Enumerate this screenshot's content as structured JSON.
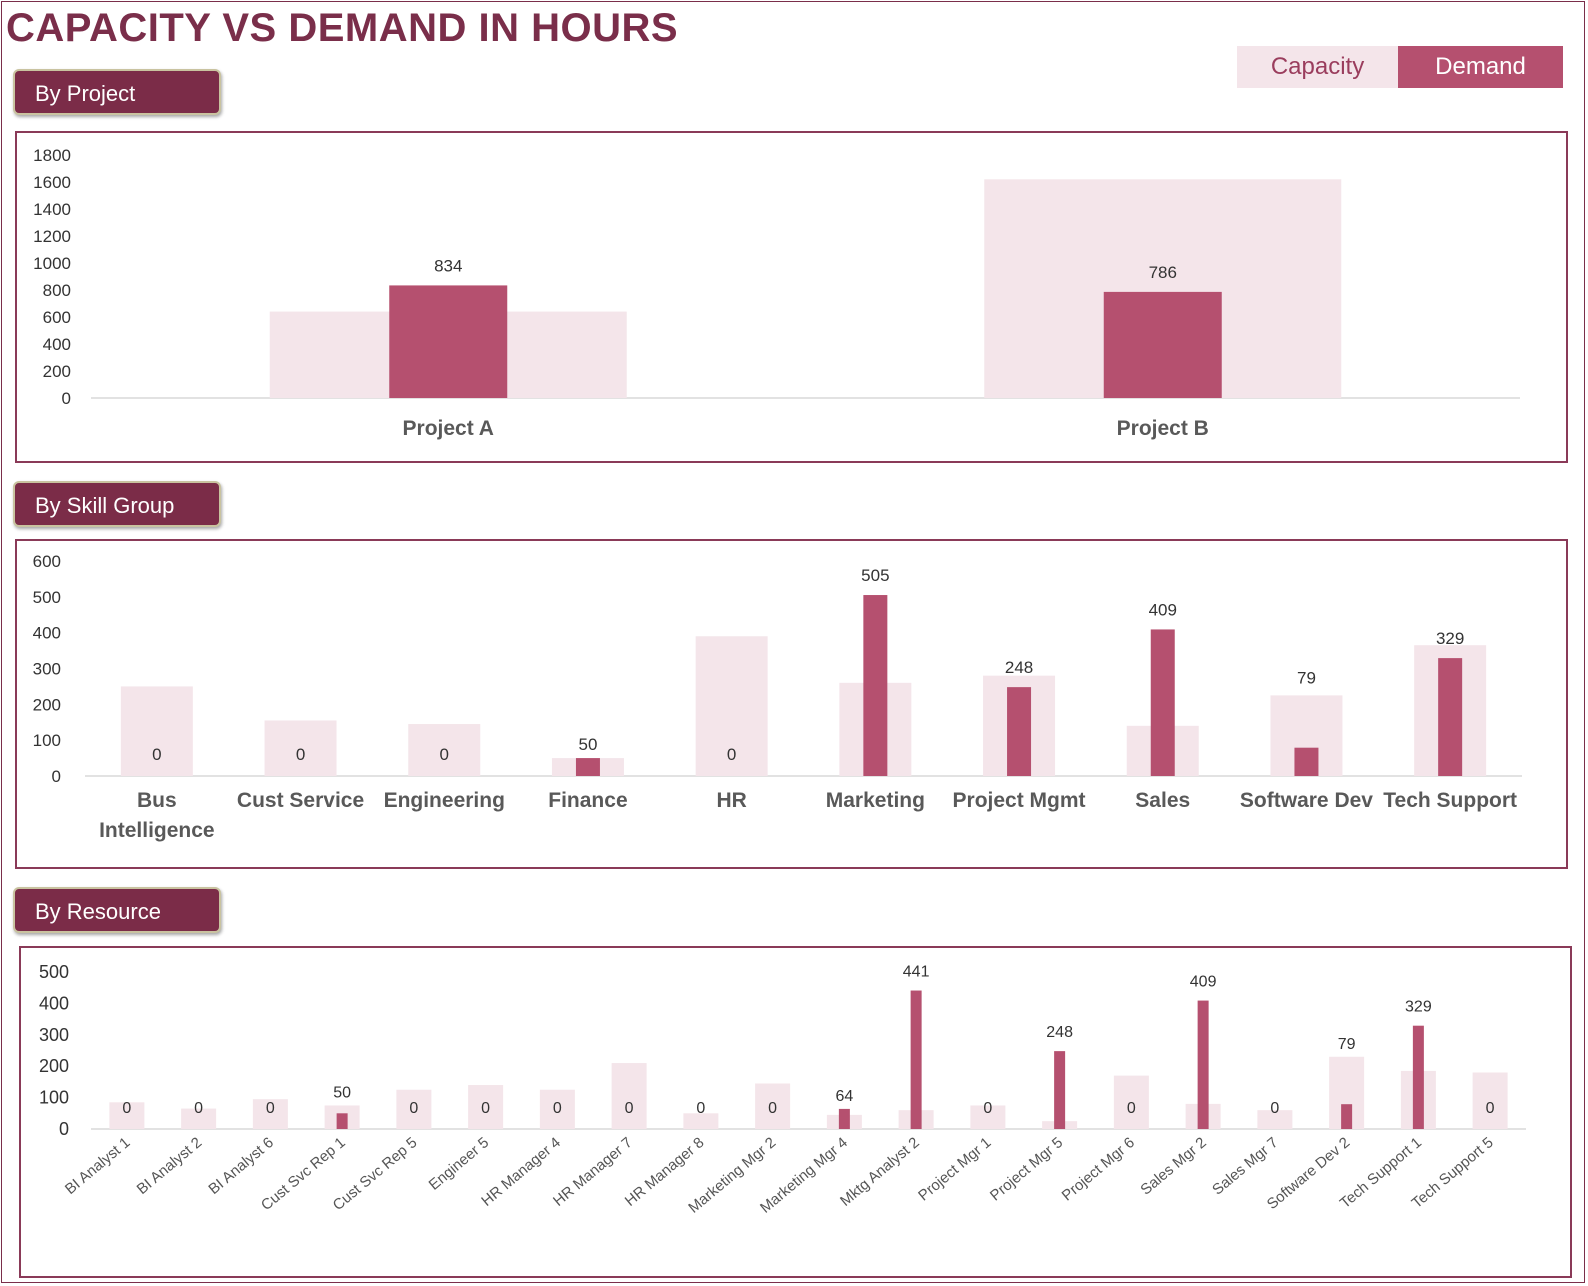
{
  "page": {
    "title": "CAPACITY VS DEMAND IN HOURS"
  },
  "legend": {
    "capacity_label": "Capacity",
    "demand_label": "Demand"
  },
  "colors": {
    "title": "#7a2e4a",
    "capacity": "#f4e5ea",
    "demand": "#b5506f",
    "tab_bg": "#7b2c48",
    "panel_border": "#8a3a58"
  },
  "sections": {
    "project_tab": "By Project",
    "skill_tab": "By Skill Group",
    "resource_tab": "By Resource"
  },
  "chart_data": [
    {
      "type": "bar",
      "title": "By Project",
      "categories": [
        "Project A",
        "Project B"
      ],
      "series": [
        {
          "name": "Capacity",
          "values": [
            640,
            1620
          ]
        },
        {
          "name": "Demand",
          "values": [
            834,
            786
          ]
        }
      ],
      "data_labels": [
        "834",
        "786"
      ],
      "yticks": [
        "0",
        "200",
        "400",
        "600",
        "800",
        "1000",
        "1200",
        "1400",
        "1600",
        "1800"
      ],
      "ylim": [
        0,
        1800
      ],
      "grid": false
    },
    {
      "type": "bar",
      "title": "By Skill Group",
      "categories": [
        [
          "Bus",
          "Intelligence"
        ],
        [
          "Cust Service"
        ],
        [
          "Engineering"
        ],
        [
          "Finance"
        ],
        [
          "HR"
        ],
        [
          "Marketing"
        ],
        [
          "Project Mgmt"
        ],
        [
          "Sales"
        ],
        [
          "Software Dev"
        ],
        [
          "Tech Support"
        ]
      ],
      "series": [
        {
          "name": "Capacity",
          "values": [
            250,
            155,
            145,
            50,
            390,
            260,
            280,
            140,
            225,
            365
          ]
        },
        {
          "name": "Demand",
          "values": [
            0,
            0,
            0,
            50,
            0,
            505,
            248,
            409,
            79,
            329
          ]
        }
      ],
      "data_labels": [
        "0",
        "0",
        "0",
        "50",
        "0",
        "505",
        "248",
        "409",
        "79",
        "329"
      ],
      "yticks": [
        "0",
        "100",
        "200",
        "300",
        "400",
        "500",
        "600"
      ],
      "ylim": [
        0,
        600
      ],
      "grid": false
    },
    {
      "type": "bar",
      "title": "By Resource",
      "categories": [
        "BI Analyst 1",
        "BI Analyst 2",
        "BI Analyst 6",
        "Cust Svc Rep 1",
        "Cust Svc Rep 5",
        "Engineer 5",
        "HR Manager 4",
        "HR Manager 7",
        "HR Manager 8",
        "Marketing Mgr 2",
        "Marketing Mgr 4",
        "Mktg Analyst 2",
        "Project Mgr 1",
        "Project Mgr 5",
        "Project Mgr 6",
        "Sales Mgr 2",
        "Sales Mgr 7",
        "Software Dev 2",
        "Tech Support 1",
        "Tech Support 5"
      ],
      "series": [
        {
          "name": "Capacity",
          "values": [
            85,
            65,
            95,
            75,
            125,
            140,
            125,
            210,
            50,
            145,
            45,
            60,
            75,
            25,
            170,
            80,
            60,
            230,
            185,
            180
          ]
        },
        {
          "name": "Demand",
          "values": [
            0,
            0,
            0,
            50,
            0,
            0,
            0,
            0,
            0,
            0,
            64,
            441,
            0,
            248,
            0,
            409,
            0,
            79,
            329,
            0
          ]
        }
      ],
      "data_labels": [
        "0",
        "0",
        "0",
        "50",
        "0",
        "0",
        "0",
        "0",
        "0",
        "0",
        "64",
        "441",
        "0",
        "248",
        "0",
        "409",
        "0",
        "79",
        "329",
        "0"
      ],
      "yticks": [
        "0",
        "100",
        "200",
        "300",
        "400",
        "500"
      ],
      "ylim": [
        0,
        500
      ],
      "grid": false
    }
  ]
}
